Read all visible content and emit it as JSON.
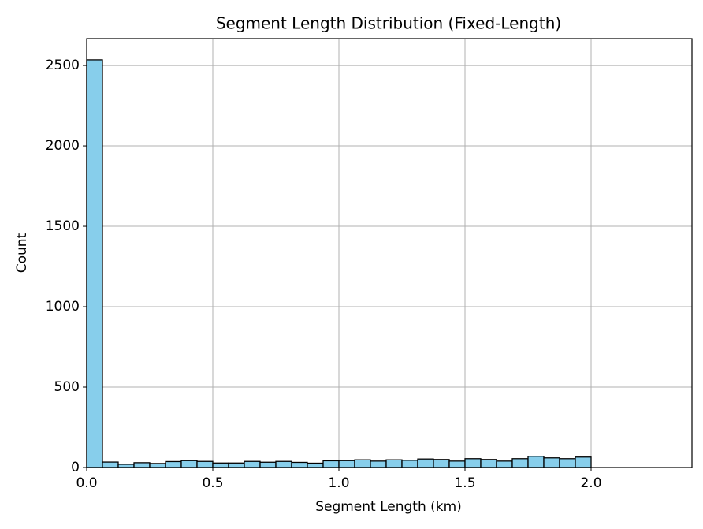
{
  "chart_data": {
    "type": "histogram",
    "title": "Segment Length Distribution (Fixed-Length)",
    "x_label": "Segment Length (km)",
    "y_label": "Count",
    "bins": [
      0,
      0.0625,
      0.125,
      0.1875,
      0.25,
      0.3125,
      0.375,
      0.4375,
      0.5,
      0.5625,
      0.625,
      0.6875,
      0.75,
      0.8125,
      0.875,
      0.9375,
      1.0,
      1.0625,
      1.125,
      1.1875,
      1.25,
      1.3125,
      1.375,
      1.4375,
      1.5,
      1.5625,
      1.625,
      1.6875,
      1.75,
      1.8125,
      1.875,
      1.9375,
      2.0
    ],
    "counts": [
      2535,
      34,
      20,
      30,
      25,
      37,
      43,
      38,
      28,
      28,
      38,
      33,
      38,
      32,
      27,
      42,
      43,
      48,
      40,
      48,
      45,
      53,
      50,
      40,
      55,
      50,
      40,
      55,
      70,
      60,
      55,
      65
    ],
    "color": "#87ceeb",
    "edgecolor": "#000000",
    "xlim": [
      0,
      2.4
    ],
    "ylim": [
      0,
      2667
    ],
    "xticks": [
      {
        "value": 0,
        "label": "0.0"
      },
      {
        "value": 0.5,
        "label": "0.5"
      },
      {
        "value": 1,
        "label": "1.0"
      },
      {
        "value": 1.5,
        "label": "1.5"
      },
      {
        "value": 2,
        "label": "2.0"
      }
    ],
    "yticks": [
      0,
      500,
      1000,
      1500,
      2000,
      2500
    ],
    "grid": true
  }
}
